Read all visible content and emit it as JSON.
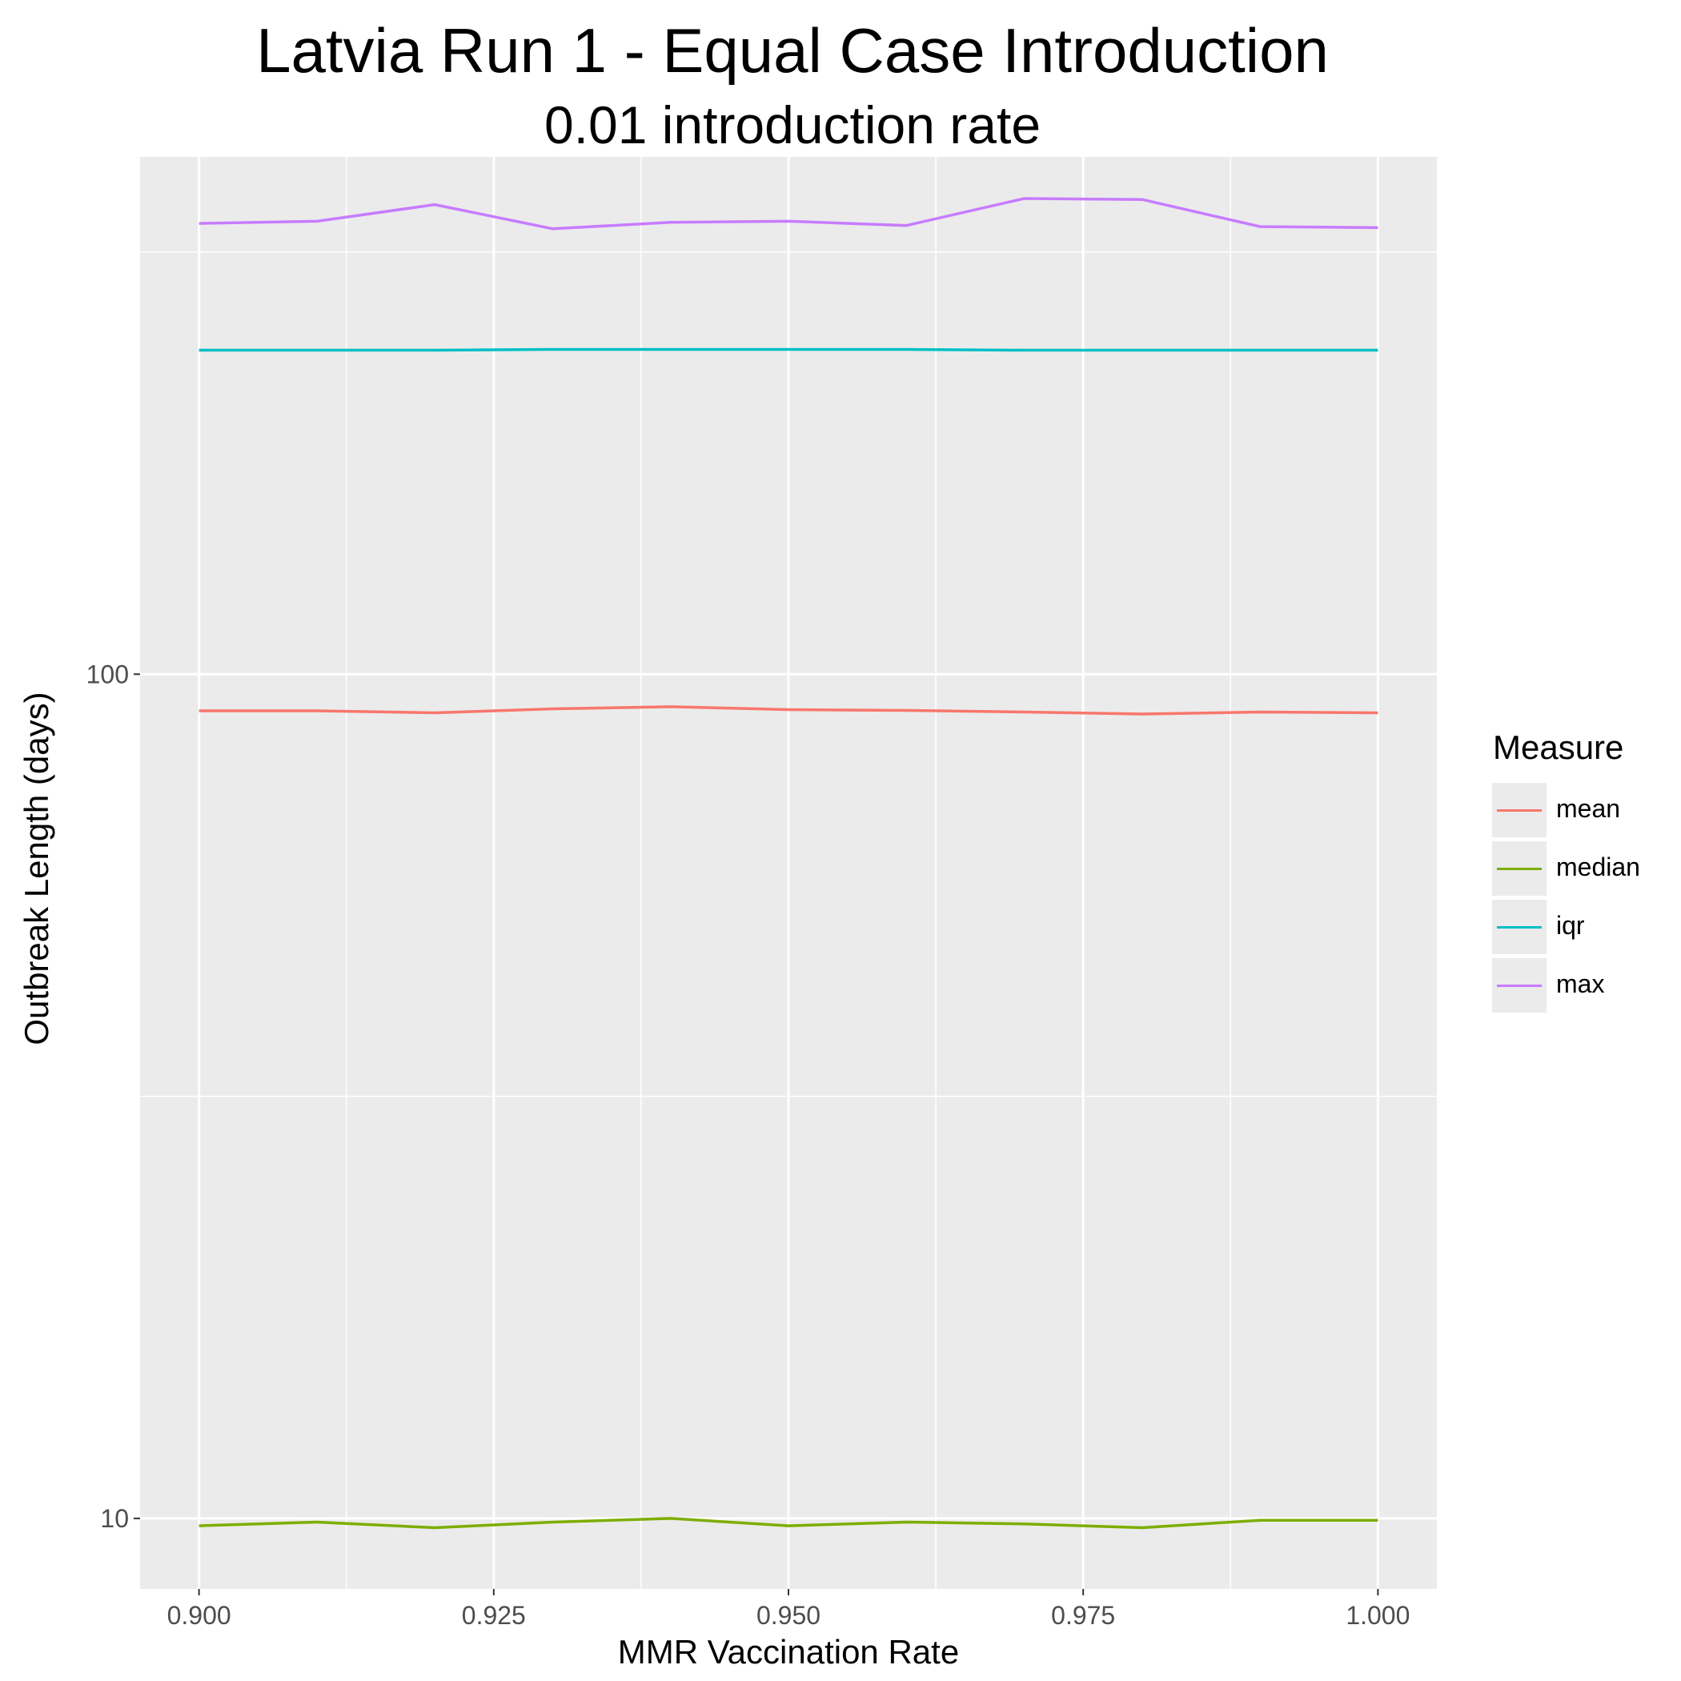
{
  "chart_data": {
    "type": "line",
    "title": "Latvia Run 1 - Equal Case Introduction",
    "subtitle": "0.01 introduction rate",
    "xlabel": "MMR Vaccination Rate",
    "ylabel": "Outbreak Length (days)",
    "y_scale": "log",
    "xlim": [
      0.895,
      1.005
    ],
    "ylim": [
      8.25,
      410
    ],
    "x_ticks": [
      "0.900",
      "0.925",
      "0.950",
      "0.975",
      "1.000"
    ],
    "y_ticks": [
      "10",
      "100"
    ],
    "grid": true,
    "legend_position": "right",
    "legend_title": "Measure",
    "x": [
      0.9,
      0.91,
      0.92,
      0.93,
      0.94,
      0.95,
      0.96,
      0.97,
      0.98,
      0.99,
      1.0
    ],
    "series": [
      {
        "name": "mean",
        "color": "#F8766D",
        "values": [
          90.5,
          90.5,
          90.0,
          91.0,
          91.5,
          90.8,
          90.6,
          90.2,
          89.7,
          90.2,
          90.0
        ]
      },
      {
        "name": "median",
        "color": "#7CAE00",
        "values": [
          9.8,
          9.9,
          9.75,
          9.9,
          10.0,
          9.8,
          9.9,
          9.85,
          9.75,
          9.95,
          9.95
        ]
      },
      {
        "name": "iqr",
        "color": "#00BFC4",
        "values": [
          242,
          242,
          242,
          242.5,
          242.5,
          242.5,
          242.5,
          242,
          242,
          242,
          242
        ]
      },
      {
        "name": "max",
        "color": "#C77CFF",
        "values": [
          342,
          344,
          360,
          337,
          343,
          344,
          340,
          366,
          365,
          339,
          338
        ]
      }
    ]
  }
}
